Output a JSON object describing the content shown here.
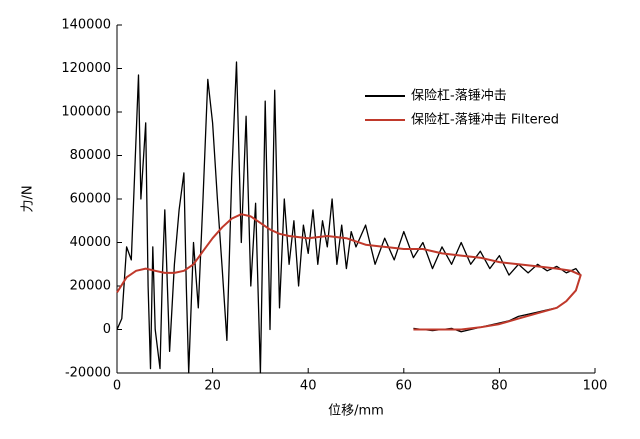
{
  "chart_data": {
    "type": "line",
    "x_label": "位移/mm",
    "y_label": "力/N",
    "xlim": [
      0,
      100
    ],
    "xticks": [
      0,
      20,
      40,
      60,
      80,
      100
    ],
    "ylim": [
      -20000,
      140000
    ],
    "yticks": [
      -20000,
      0,
      20000,
      40000,
      60000,
      80000,
      100000,
      120000,
      140000
    ],
    "series": [
      {
        "name": "保险杠-落锤冲击",
        "color": "#000000",
        "x": [
          0,
          1,
          2,
          3,
          4.5,
          5,
          6,
          6.5,
          7,
          7.5,
          8,
          9,
          9.5,
          10,
          11,
          12,
          13,
          14,
          14.5,
          15,
          16,
          17,
          18,
          19,
          20,
          21,
          22,
          23,
          24,
          25,
          26,
          27,
          28,
          29,
          30,
          31,
          32,
          33,
          34,
          35,
          36,
          37,
          38,
          39,
          40,
          41,
          42,
          43,
          44,
          45,
          46,
          47,
          48,
          49,
          50,
          52,
          54,
          56,
          58,
          60,
          62,
          64,
          66,
          68,
          70,
          72,
          74,
          76,
          78,
          80,
          82,
          84,
          86,
          88,
          90,
          92,
          94,
          96,
          97,
          96,
          94,
          92,
          90,
          88,
          86,
          84,
          82,
          80,
          78,
          76,
          74,
          72,
          70,
          68,
          66,
          64,
          62
        ],
        "values": [
          0,
          5000,
          38000,
          32000,
          117000,
          60000,
          95000,
          20000,
          -18000,
          38000,
          0,
          -18000,
          25000,
          55000,
          -10000,
          30000,
          55000,
          72000,
          20000,
          -20000,
          40000,
          10000,
          60000,
          115000,
          95000,
          60000,
          28000,
          -5000,
          70000,
          123000,
          40000,
          98000,
          20000,
          58000,
          -20000,
          105000,
          0,
          110000,
          10000,
          60000,
          30000,
          50000,
          20000,
          48000,
          35000,
          55000,
          30000,
          50000,
          38000,
          60000,
          30000,
          48000,
          28000,
          45000,
          38000,
          48000,
          30000,
          42000,
          32000,
          45000,
          33000,
          40000,
          28000,
          38000,
          30000,
          40000,
          30000,
          36000,
          28000,
          34000,
          25000,
          30000,
          26000,
          30000,
          27000,
          29000,
          26000,
          28000,
          25000,
          18000,
          13000,
          10000,
          9000,
          8000,
          7000,
          6000,
          4000,
          3000,
          2000,
          1000,
          0,
          -1000,
          500,
          0,
          -500,
          0,
          500
        ]
      },
      {
        "name": "保险杠-落锤冲击 Filtered",
        "color": "#c0392b",
        "x": [
          0,
          2,
          4,
          6,
          8,
          10,
          12,
          14,
          16,
          18,
          20,
          22,
          24,
          26,
          28,
          30,
          32,
          34,
          36,
          40,
          44,
          48,
          52,
          56,
          60,
          64,
          68,
          72,
          76,
          80,
          84,
          88,
          92,
          95,
          97,
          96,
          94,
          92,
          88,
          84,
          80,
          76,
          72,
          68,
          64,
          62
        ],
        "values": [
          17000,
          24000,
          27000,
          28000,
          27000,
          26000,
          26000,
          27000,
          30000,
          36000,
          42000,
          47000,
          51000,
          53000,
          52000,
          49000,
          46000,
          44000,
          43000,
          42000,
          43000,
          42000,
          39000,
          38000,
          37000,
          37000,
          35000,
          34000,
          33000,
          31000,
          30000,
          29000,
          28000,
          27000,
          25000,
          18000,
          13000,
          10000,
          7500,
          5000,
          2500,
          1000,
          0,
          0,
          0,
          0
        ]
      }
    ]
  }
}
